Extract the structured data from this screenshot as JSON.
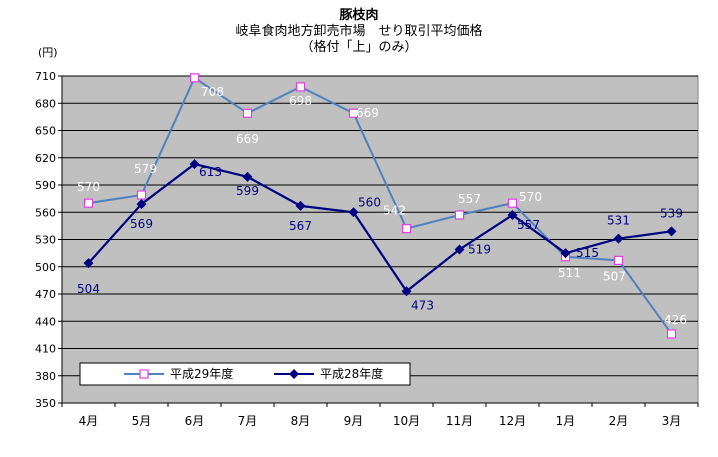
{
  "header": {
    "title": "豚枝肉",
    "subtitle": "岐阜食肉地方卸売市場　せり取引平均価格",
    "note": "（格付「上」のみ）",
    "unit": "(円)"
  },
  "chart_data": {
    "type": "line",
    "title": "豚枝肉",
    "subtitle": "岐阜食肉地方卸売市場　せり取引平均価格（格付「上」のみ）",
    "ylabel": "(円)",
    "xlabel": "",
    "categories": [
      "4月",
      "5月",
      "6月",
      "7月",
      "8月",
      "9月",
      "10月",
      "11月",
      "12月",
      "1月",
      "2月",
      "3月"
    ],
    "ylim": [
      350,
      710
    ],
    "yticks": [
      350,
      380,
      410,
      440,
      470,
      500,
      530,
      560,
      590,
      620,
      650,
      680,
      710
    ],
    "grid": true,
    "plot_background": "#c0c0c0",
    "legend_placement": "bottom-left",
    "series": [
      {
        "name": "平成29年度",
        "color": "#4f81bd",
        "label_color": "#ffffff",
        "marker": "open-square",
        "marker_color": "#e040e0",
        "values": [
          570,
          579,
          708,
          669,
          698,
          669,
          542,
          557,
          570,
          511,
          507,
          426
        ]
      },
      {
        "name": "平成28年度",
        "color": "#000080",
        "label_color": "#000080",
        "marker": "filled-diamond",
        "marker_color": "#000080",
        "values": [
          504,
          569,
          613,
          599,
          567,
          560,
          473,
          519,
          557,
          515,
          531,
          539
        ]
      }
    ]
  }
}
